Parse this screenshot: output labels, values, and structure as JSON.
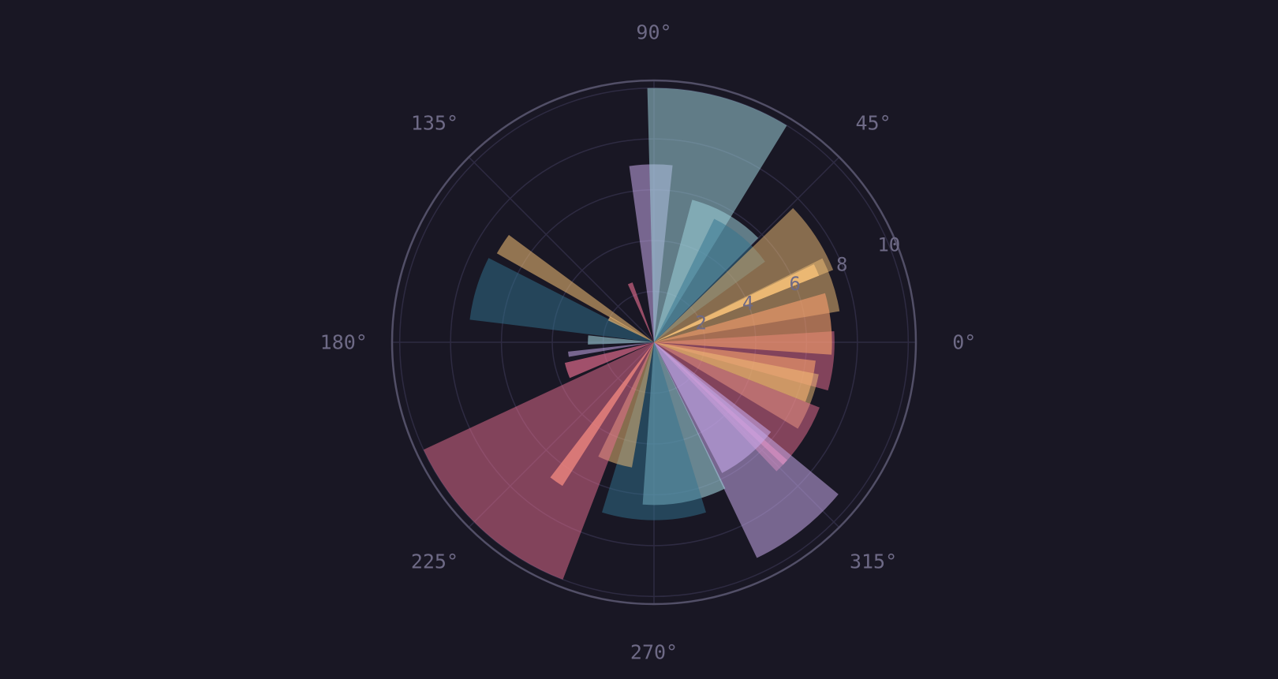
{
  "chart_data": {
    "type": "bar",
    "projection": "polar",
    "title": "",
    "theta_unit": "degrees",
    "theta_ticks": [
      0,
      45,
      90,
      135,
      180,
      225,
      270,
      315
    ],
    "theta_tick_labels": [
      "0°",
      "45°",
      "90°",
      "135°",
      "180°",
      "225°",
      "270°",
      "315°"
    ],
    "r_ticks": [
      2,
      4,
      6,
      8,
      10
    ],
    "r_tick_labels": [
      "2",
      "4",
      "6",
      "8",
      "10"
    ],
    "rlim": [
      0,
      10.3
    ],
    "r_label_angle_deg": 22.5,
    "grid": true,
    "background": "#191724",
    "palette": {
      "love": "#eb6f92",
      "gold": "#f6c177",
      "rose": "#ebbcba",
      "pine": "#31748f",
      "foam": "#9ccfd8",
      "iris": "#c4a7e7",
      "rose_orange": "#f09b6b"
    },
    "bars": [
      {
        "theta": 354,
        "width": 19,
        "r": 7.1,
        "color": "#eb6f92",
        "alpha": 0.5
      },
      {
        "theta": 346,
        "width": 15,
        "r": 6.4,
        "color": "#f09b6b",
        "alpha": 0.65
      },
      {
        "theta": 339,
        "width": 20,
        "r": 6.6,
        "color": "#f6c177",
        "alpha": 0.5
      },
      {
        "theta": 326,
        "width": 25,
        "r": 7.0,
        "color": "#eb6f92",
        "alpha": 0.5
      },
      {
        "theta": 317.5,
        "width": 2,
        "r": 7.0,
        "color": "#eb6f92",
        "alpha": 0.7
      },
      {
        "theta": 308,
        "width": 25,
        "r": 9.4,
        "color": "#c4a7e7",
        "alpha": 0.55
      },
      {
        "theta": 310,
        "width": 25,
        "r": 5.8,
        "color": "#c4a7e7",
        "alpha": 0.6
      },
      {
        "theta": 281,
        "width": 30,
        "r": 6.4,
        "color": "#9ccfd8",
        "alpha": 0.6
      },
      {
        "theta": 270,
        "width": 34,
        "r": 7.0,
        "color": "#31748f",
        "alpha": 0.5
      },
      {
        "theta": 252,
        "width": 16,
        "r": 5.0,
        "color": "#f6c177",
        "alpha": 0.5
      },
      {
        "theta": 235,
        "width": 5,
        "r": 6.7,
        "color": "#f09b6b",
        "alpha": 0.8
      },
      {
        "theta": 227,
        "width": 44,
        "r": 10.0,
        "color": "#eb6f92",
        "alpha": 0.5
      },
      {
        "theta": 198,
        "width": 10,
        "r": 3.6,
        "color": "#eb6f92",
        "alpha": 0.65
      },
      {
        "theta": 188,
        "width": 3.5,
        "r": 3.4,
        "color": "#c4a7e7",
        "alpha": 0.55
      },
      {
        "theta": 178,
        "width": 8,
        "r": 2.6,
        "color": "#9ccfd8",
        "alpha": 0.6
      },
      {
        "theta": 163,
        "width": 20,
        "r": 7.3,
        "color": "#31748f",
        "alpha": 0.5
      },
      {
        "theta": 147,
        "width": 7,
        "r": 7.1,
        "color": "#f6c177",
        "alpha": 0.55
      },
      {
        "theta": 152,
        "width": 5,
        "r": 2.0,
        "color": "#f6c177",
        "alpha": 0.65
      },
      {
        "theta": 112,
        "width": 4.5,
        "r": 2.5,
        "color": "#eb6f92",
        "alpha": 0.6
      },
      {
        "theta": 91,
        "width": 14,
        "r": 7.0,
        "color": "#c4a7e7",
        "alpha": 0.55
      },
      {
        "theta": 75,
        "width": 33,
        "r": 10.0,
        "color": "#9ccfd8",
        "alpha": 0.55
      },
      {
        "theta": 60,
        "width": 30,
        "r": 5.8,
        "color": "#9ccfd8",
        "alpha": 0.55
      },
      {
        "theta": 50,
        "width": 28,
        "r": 5.4,
        "color": "#31748f",
        "alpha": 0.5
      },
      {
        "theta": 33,
        "width": 22,
        "r": 7.6,
        "color": "#f6c177",
        "alpha": 0.5
      },
      {
        "theta": 24,
        "width": 4,
        "r": 7.0,
        "color": "#f6c177",
        "alpha": 0.8
      },
      {
        "theta": 18,
        "width": 17,
        "r": 7.4,
        "color": "#f6c177",
        "alpha": 0.5
      },
      {
        "theta": 6,
        "width": 20,
        "r": 7.0,
        "color": "#f09b6b",
        "alpha": 0.65
      }
    ]
  }
}
